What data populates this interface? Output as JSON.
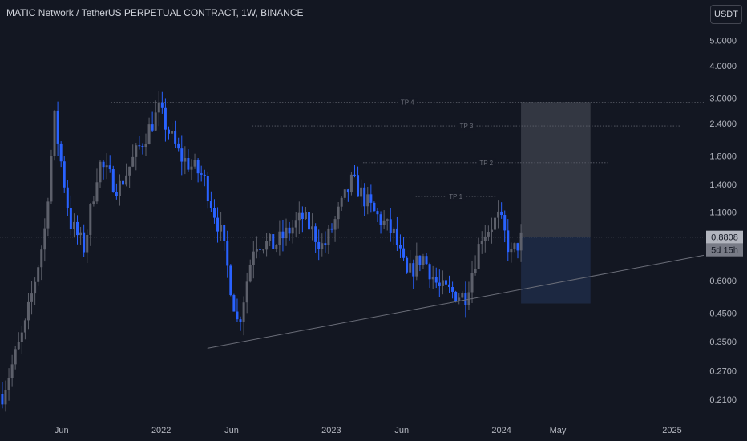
{
  "header": {
    "title": "MATIC Network / TetherUS PERPETUAL CONTRACT, 1W, BINANCE",
    "currency_button": "USDT"
  },
  "price_badge": {
    "price": "0.8808",
    "countdown": "5d 15h"
  },
  "colors": {
    "background": "#131722",
    "candle_up": "#5d606b",
    "candle_down": "#2962ff",
    "badge_bg": "#b2b5be",
    "target_zone": "#3a3d48",
    "stop_zone": "#1e2a45"
  },
  "chart_data": {
    "type": "candlestick",
    "scale": "log",
    "y_ticks": [
      "5.0000",
      "4.0000",
      "3.0000",
      "2.4000",
      "1.8000",
      "1.4000",
      "1.1000",
      "0.6000",
      "0.4500",
      "0.3500",
      "0.2700",
      "0.2100"
    ],
    "y_tick_values": [
      5.0,
      4.0,
      3.0,
      2.4,
      1.8,
      1.4,
      1.1,
      0.6,
      0.45,
      0.35,
      0.27,
      0.21
    ],
    "x_ticks": [
      "Jun",
      "2022",
      "Jun",
      "2023",
      "Jun",
      "2024",
      "May",
      "2025"
    ],
    "x_tick_dates": [
      "2021-06-01",
      "2022-01-01",
      "2022-06-01",
      "2023-01-01",
      "2023-06-01",
      "2024-01-01",
      "2024-05-01",
      "2025-01-01"
    ],
    "ylim": [
      0.18,
      6.2
    ],
    "xlim": [
      "2021-01-20",
      "2025-03-10"
    ],
    "key_points": [
      {
        "date": "2021-01-25",
        "price": 0.22
      },
      {
        "date": "2021-03-15",
        "price": 0.4
      },
      {
        "date": "2021-04-25",
        "price": 0.9
      },
      {
        "date": "2021-05-17",
        "price": 2.5
      },
      {
        "date": "2021-06-20",
        "price": 1.0
      },
      {
        "date": "2021-07-20",
        "price": 0.8
      },
      {
        "date": "2021-08-20",
        "price": 1.7
      },
      {
        "date": "2021-10-01",
        "price": 1.35
      },
      {
        "date": "2021-11-05",
        "price": 1.8
      },
      {
        "date": "2021-12-27",
        "price": 2.7
      },
      {
        "date": "2022-02-10",
        "price": 1.8
      },
      {
        "date": "2022-04-01",
        "price": 1.5
      },
      {
        "date": "2022-05-10",
        "price": 0.9
      },
      {
        "date": "2022-06-15",
        "price": 0.4
      },
      {
        "date": "2022-07-20",
        "price": 0.85
      },
      {
        "date": "2022-09-01",
        "price": 0.82
      },
      {
        "date": "2022-11-01",
        "price": 1.05
      },
      {
        "date": "2022-12-15",
        "price": 0.8
      },
      {
        "date": "2023-02-15",
        "price": 1.45
      },
      {
        "date": "2023-04-01",
        "price": 1.1
      },
      {
        "date": "2023-05-15",
        "price": 0.9
      },
      {
        "date": "2023-06-12",
        "price": 0.62
      },
      {
        "date": "2023-07-15",
        "price": 0.75
      },
      {
        "date": "2023-08-20",
        "price": 0.56
      },
      {
        "date": "2023-10-15",
        "price": 0.52
      },
      {
        "date": "2023-11-20",
        "price": 0.9
      },
      {
        "date": "2023-12-27",
        "price": 1.05
      },
      {
        "date": "2024-01-22",
        "price": 0.75
      },
      {
        "date": "2024-02-14",
        "price": 0.88
      }
    ],
    "current_price": 0.8808,
    "trendline": [
      {
        "date": "2022-04-10",
        "price": 0.33
      },
      {
        "date": "2025-03-10",
        "price": 0.75
      }
    ],
    "position": {
      "start": "2024-02-12",
      "end": "2024-07-10",
      "entry": 0.8808,
      "target": 2.9,
      "stop": 0.49
    },
    "take_profits": [
      {
        "label": "TP 4",
        "price": 2.9,
        "start": "2021-09-15",
        "end": "2025-03-10"
      },
      {
        "label": "TP 3",
        "price": 2.35,
        "start": "2022-07-15",
        "end": "2025-01-20"
      },
      {
        "label": "TP 2",
        "price": 1.7,
        "start": "2023-03-10",
        "end": "2024-08-20"
      },
      {
        "label": "TP 1",
        "price": 1.26,
        "start": "2023-07-01",
        "end": "2023-12-20"
      }
    ]
  }
}
